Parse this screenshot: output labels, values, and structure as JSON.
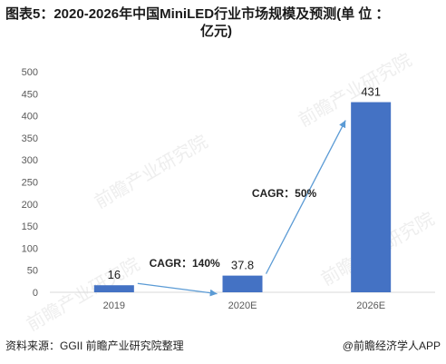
{
  "title_line1": "图表5：2020-2026年中国MiniLED行业市场规模及预测(单 位 ：",
  "title_line2": "亿元)",
  "source": "资料来源：GGII 前瞻产业研究院整理",
  "credit": "@前瞻经济学人APP",
  "watermark": "前瞻产业研究院",
  "colors": {
    "bar": "#4472C4",
    "arrow": "#5B9BD5",
    "axis_text": "#595959",
    "gridline": "#d9d9d9"
  },
  "chart_data": {
    "type": "bar",
    "categories": [
      "2019",
      "2020E",
      "2026E"
    ],
    "values": [
      16,
      37.8,
      431
    ],
    "value_labels": [
      "16",
      "37.8",
      "431"
    ],
    "ylim": [
      0,
      500
    ],
    "yticks": [
      0,
      50,
      100,
      150,
      200,
      250,
      300,
      350,
      400,
      450,
      500
    ],
    "grid": false,
    "annotations": [
      {
        "text": "CAGR：140%",
        "from": "2019",
        "to": "2020E"
      },
      {
        "text": "CAGR：50%",
        "from": "2020E",
        "to": "2026E"
      }
    ]
  }
}
